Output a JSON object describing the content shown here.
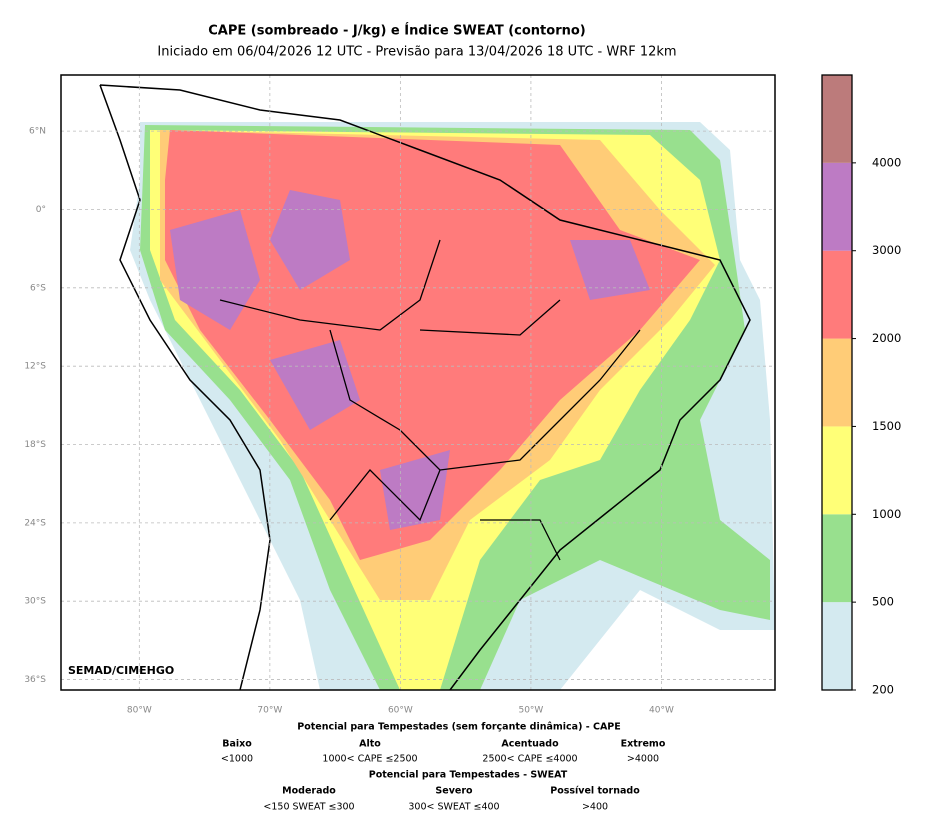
{
  "title": "CAPE (sombreado - J/kg) e Índice SWEAT (contorno)",
  "subtitle": "Iniciado em 06/04/2026 12 UTC - Previsão para 13/04/2026 18 UTC - WRF 12km",
  "map": {
    "lon_range": [
      -86,
      -31.3
    ],
    "lat_range": [
      -36.8,
      10.3
    ],
    "lon_ticks": [
      {
        "value": -80,
        "label": "80°W"
      },
      {
        "value": -70,
        "label": "70°W"
      },
      {
        "value": -60,
        "label": "60°W"
      },
      {
        "value": -50,
        "label": "50°W"
      },
      {
        "value": -40,
        "label": "40°W"
      }
    ],
    "lat_ticks": [
      {
        "value": 6,
        "label": "6°N"
      },
      {
        "value": 0,
        "label": "0°"
      },
      {
        "value": -6,
        "label": "6°S"
      },
      {
        "value": -12,
        "label": "12°S"
      },
      {
        "value": -18,
        "label": "18°S"
      },
      {
        "value": -24,
        "label": "24°S"
      },
      {
        "value": -30,
        "label": "30°S"
      },
      {
        "value": -36,
        "label": "36°S"
      }
    ],
    "grid": true,
    "credit": "SEMAD/CIMEHGO"
  },
  "colorbar": {
    "levels": [
      200,
      500,
      1000,
      1500,
      2000,
      3000,
      4000
    ],
    "colors": [
      "#d4eaf0",
      "#98e08e",
      "#ffff77",
      "#ffcc77",
      "#ff7b7b",
      "#bd7bc4",
      "#bc7b7b"
    ]
  },
  "legend": {
    "cape_title": "Potencial para Tempestades (sem forçante dinâmica) - CAPE",
    "cape": [
      {
        "name": "Baixo",
        "range": "<1000"
      },
      {
        "name": "Alto",
        "range": "1000< CAPE ≤2500"
      },
      {
        "name": "Acentuado",
        "range": "2500< CAPE ≤4000"
      },
      {
        "name": "Extremo",
        "range": ">4000"
      }
    ],
    "sweat_title": "Potencial para Tempestades - SWEAT",
    "sweat": [
      {
        "name": "Moderado",
        "range": "<150 SWEAT ≤300"
      },
      {
        "name": "Severo",
        "range": "300< SWEAT ≤400"
      },
      {
        "name": "Possível tornado",
        "range": ">400"
      }
    ]
  }
}
